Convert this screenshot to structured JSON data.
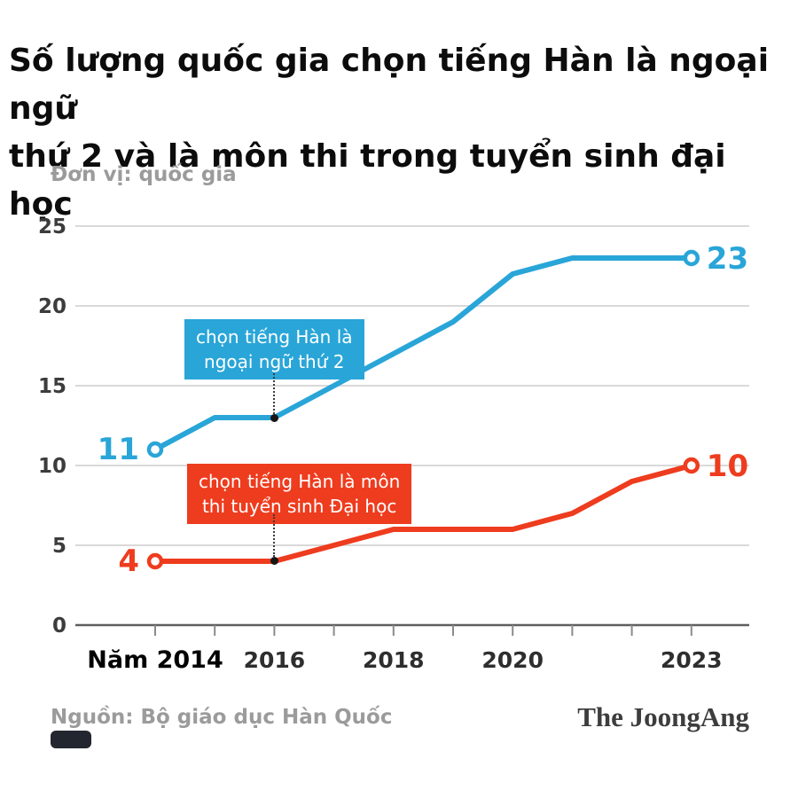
{
  "title_line1": "Số lượng quốc gia chọn tiếng Hàn là ngoại ngữ",
  "title_line2": "thứ 2 và là môn thi trong tuyển sinh đại học",
  "unit_label": "Đơn vị: quốc gia",
  "source": "Nguồn: Bộ giáo dục Hàn Quốc",
  "brand": "The JoongAng",
  "colors": {
    "blue": "#29a5d8",
    "red": "#ee3c1e",
    "title": "#0c0c0c",
    "muted_gray": "#9b9b9b",
    "axis_text": "#3c3c3c",
    "gridline": "#d9d9d9",
    "baseline": "#5f5f5f"
  },
  "chart_data": {
    "type": "line",
    "x": [
      2014,
      2015,
      2016,
      2017,
      2018,
      2019,
      2020,
      2021,
      2022,
      2023
    ],
    "series": [
      {
        "name": "chọn tiếng Hàn là ngoại ngữ thứ 2",
        "color": "#29a5d8",
        "values": [
          11,
          13,
          13,
          15,
          17,
          19,
          22,
          23,
          23,
          23
        ],
        "start_label": "11",
        "end_label": "23"
      },
      {
        "name": "chọn tiếng Hàn là môn thi tuyển sinh Đại học",
        "color": "#ee3c1e",
        "values": [
          4,
          4,
          4,
          5,
          6,
          6,
          6,
          7,
          9,
          10
        ],
        "start_label": "4",
        "end_label": "10"
      }
    ],
    "annotations": [
      {
        "line1": "chọn tiếng Hàn là",
        "line2": "ngoại ngữ thứ 2",
        "target_x": 2016,
        "target_y": 13
      },
      {
        "line1": "chọn tiếng Hàn là môn",
        "line2": "thi tuyển sinh Đại học",
        "target_x": 2016,
        "target_y": 4
      }
    ],
    "ylim": [
      0,
      25
    ],
    "yticks": [
      0,
      5,
      10,
      15,
      20,
      25
    ],
    "xticks": [
      {
        "label": "Năm 2014",
        "year": 2014,
        "emphasis": true
      },
      {
        "label": "2016",
        "year": 2016,
        "emphasis": false
      },
      {
        "label": "2018",
        "year": 2018,
        "emphasis": false
      },
      {
        "label": "2020",
        "year": 2020,
        "emphasis": false
      },
      {
        "label": "2023",
        "year": 2023,
        "emphasis": false
      }
    ],
    "xlabel": "Năm",
    "ylabel": "quốc gia",
    "grid": "horizontal",
    "legend_position": "none"
  }
}
